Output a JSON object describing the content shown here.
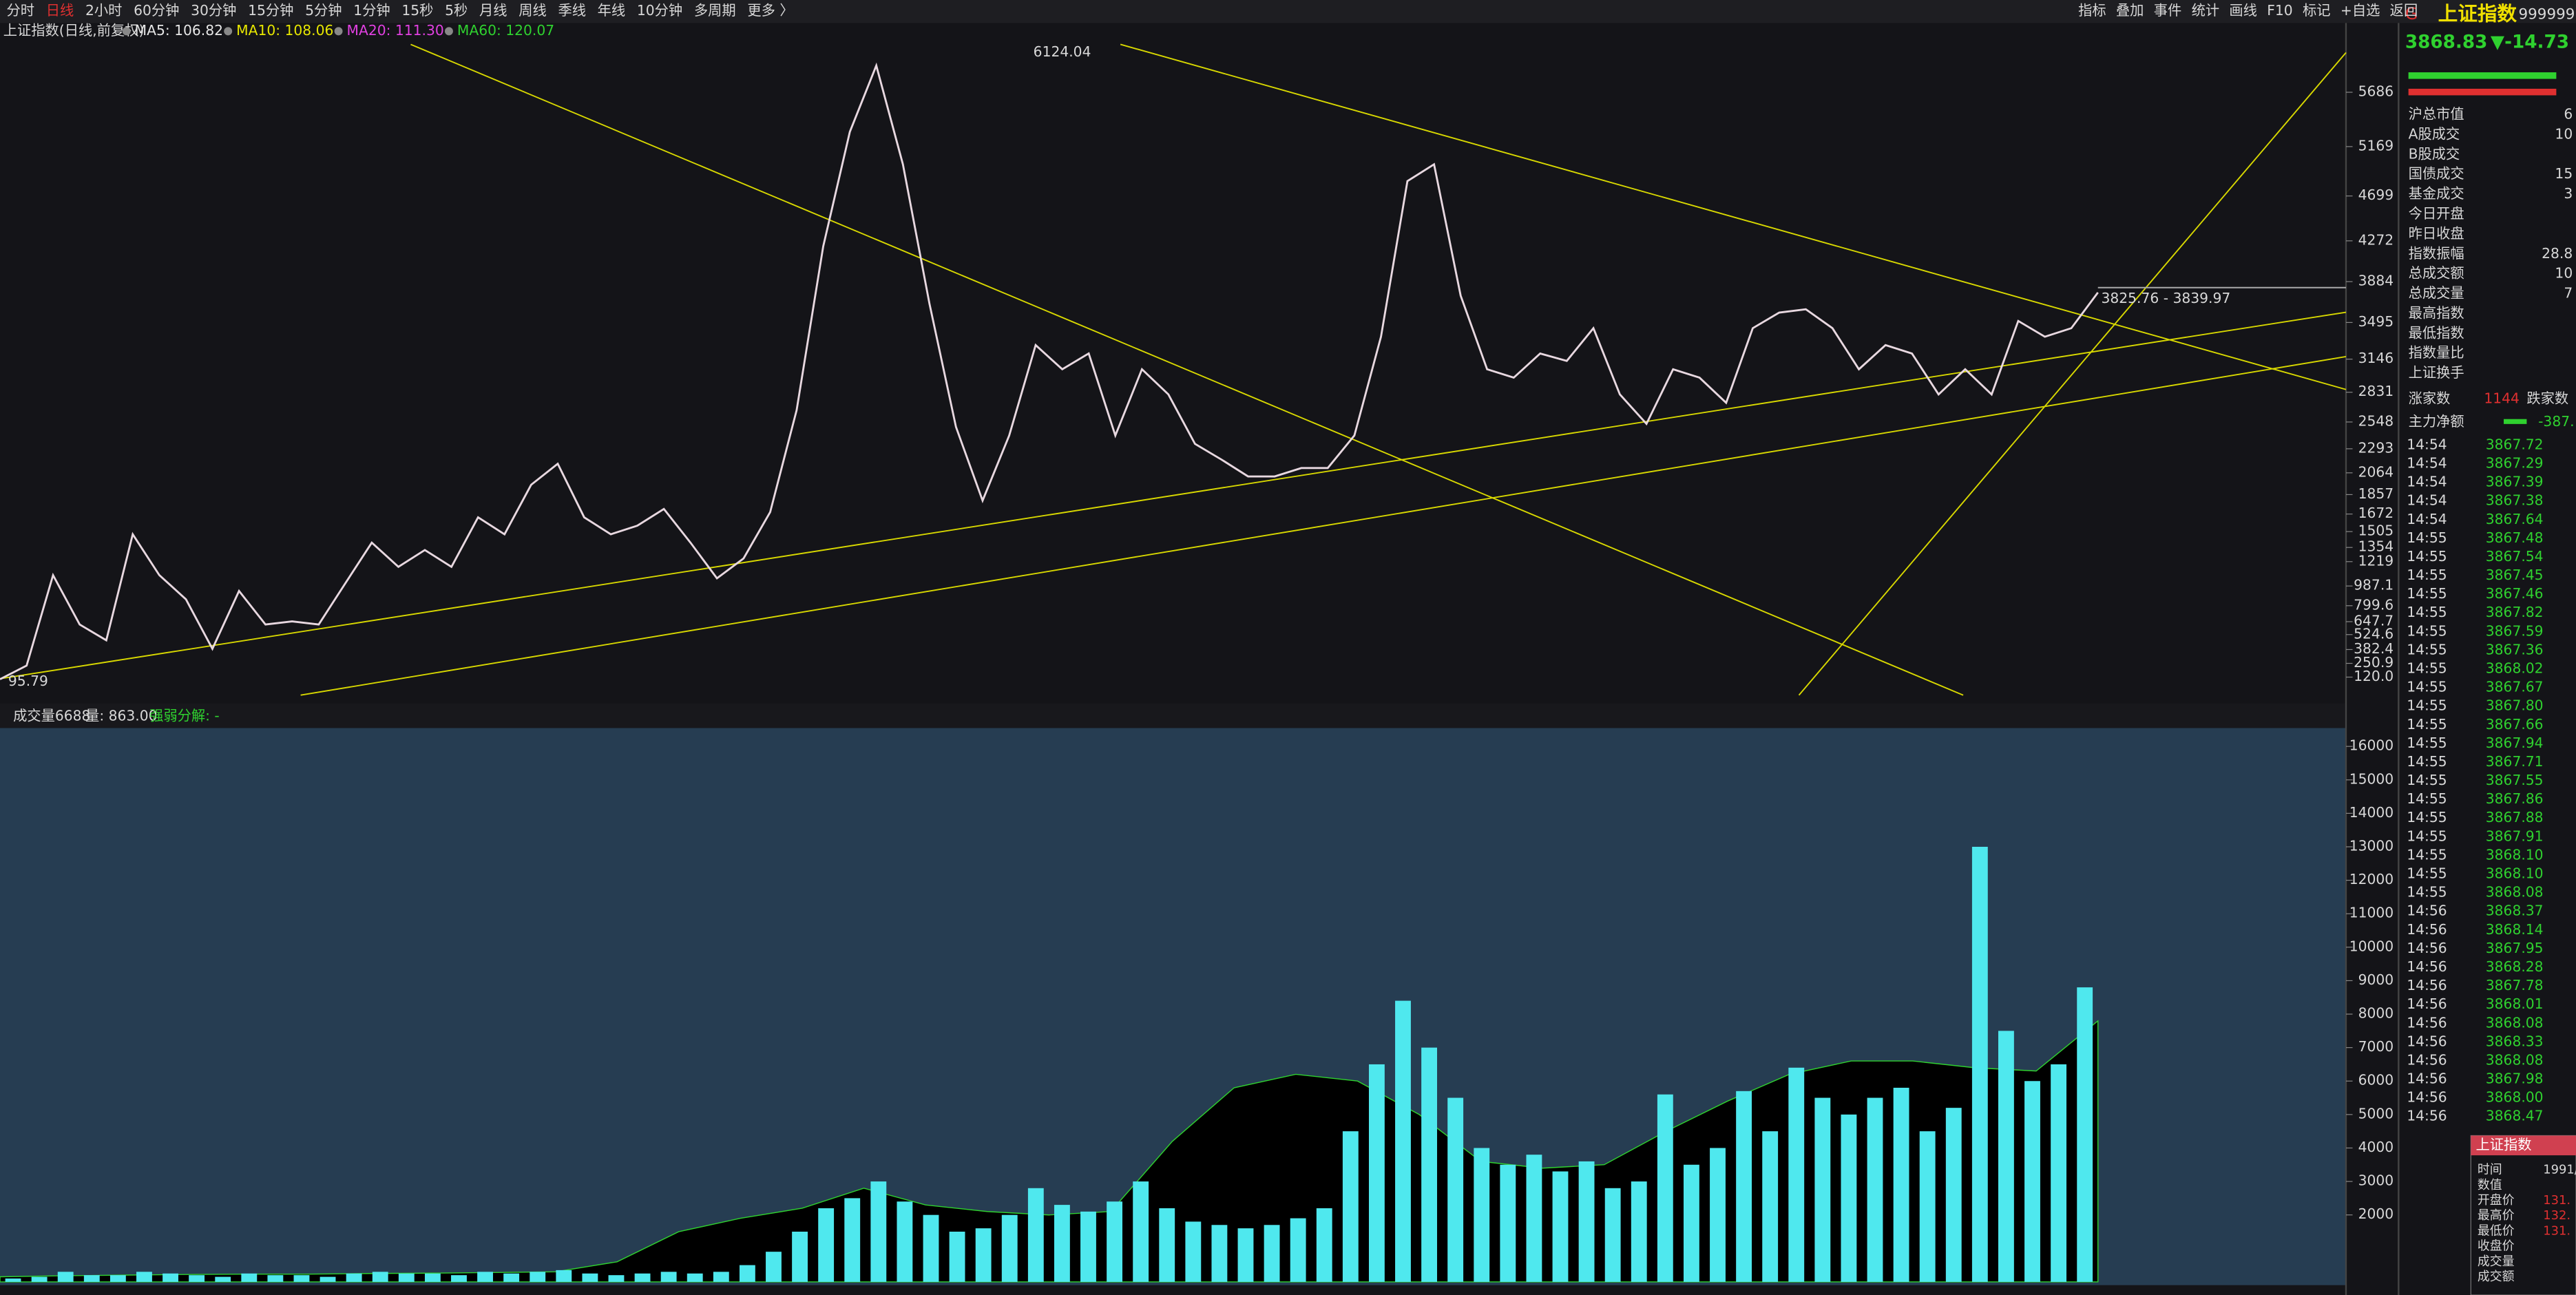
{
  "toolbar": {
    "periods": [
      "分时",
      "日线",
      "2小时",
      "60分钟",
      "30分钟",
      "15分钟",
      "5分钟",
      "1分钟",
      "15秒",
      "5秒",
      "月线",
      "周线",
      "季线",
      "年线",
      "10分钟",
      "多周期",
      "更多 〉"
    ],
    "tools": [
      "指标",
      "叠加",
      "事件",
      "统计",
      "画线",
      "F10",
      "标记",
      "+自选",
      "返回"
    ]
  },
  "chart_data": [
    {
      "type": "line",
      "title": "上证指数(日线,前复权)",
      "legend": [
        {
          "text": "MA5: 106.82",
          "color": "#e6e6e6"
        },
        {
          "text": "MA10: 108.06",
          "color": "#e6e600"
        },
        {
          "text": "MA20: 111.30",
          "color": "#e040e0"
        },
        {
          "text": "MA60: 120.07",
          "color": "#2fd12f"
        }
      ],
      "ylim": [
        -130,
        6220
      ],
      "yticks": [
        5686,
        5169,
        4699,
        4272,
        3884,
        3495,
        3146,
        2831,
        2548,
        2293,
        2064,
        1857,
        1672,
        1505,
        1354,
        1219,
        {
          "value": 987.1,
          "label": "987.1"
        },
        {
          "value": 799.6,
          "label": "799.6"
        },
        {
          "value": 647.7,
          "label": "647.7"
        },
        {
          "value": 524.6,
          "label": "524.6"
        },
        {
          "value": 382.4,
          "label": "382.4"
        },
        {
          "value": 250.9,
          "label": "250.9"
        },
        {
          "value": 120,
          "label": "120.0"
        }
      ],
      "color": "#e8d8e0",
      "values": [
        100,
        230,
        1090,
        620,
        470,
        1480,
        1090,
        860,
        390,
        940,
        620,
        650,
        620,
        1010,
        1400,
        1170,
        1330,
        1170,
        1640,
        1480,
        1950,
        2150,
        1640,
        1480,
        1560,
        1720,
        1400,
        1060,
        1250,
        1690,
        2660,
        4220,
        5310,
        5940,
        5000,
        3670,
        2500,
        1800,
        2420,
        3280,
        3050,
        3200,
        2420,
        3050,
        2810,
        2340,
        2190,
        2030,
        2030,
        2110,
        2110,
        2420,
        3360,
        4840,
        5000,
        3750,
        3050,
        2970,
        3200,
        3130,
        3440,
        2810,
        2530,
        3050,
        2970,
        2730,
        3440,
        3590,
        3620,
        3440,
        3050,
        3280,
        3200,
        2810,
        3050,
        2810,
        3510,
        3360,
        3440,
        3780
      ],
      "annotations": [
        "6124.04",
        "95.79",
        "3825.76 - 3839.97"
      ]
    },
    {
      "type": "bar",
      "title": "成交量6688",
      "subtitle": "量: 863.00",
      "note": "强弱分解: -",
      "ylim": [
        0,
        16500
      ],
      "yticks": [
        2000,
        3000,
        4000,
        5000,
        6000,
        7000,
        8000,
        9000,
        10000,
        11000,
        12000,
        13000,
        14000,
        15000,
        16000
      ],
      "series": [
        {
          "color": "#000000",
          "values": [
            150,
            180,
            200,
            220,
            230,
            230,
            250,
            260,
            280,
            300,
            600,
            1500,
            1900,
            2200,
            2800,
            2300,
            2100,
            2000,
            2100,
            4200,
            5800,
            6200,
            6000,
            5000,
            3600,
            3400,
            3500,
            4500,
            5400,
            6200,
            6600,
            6600,
            6400,
            6300,
            7800
          ]
        },
        {
          "color": "#4fe8ee",
          "values": [
            100,
            150,
            300,
            200,
            200,
            300,
            250,
            200,
            150,
            250,
            200,
            200,
            150,
            250,
            300,
            250,
            250,
            200,
            300,
            250,
            300,
            350,
            250,
            200,
            250,
            300,
            250,
            300,
            500,
            900,
            1500,
            2200,
            2500,
            3000,
            2400,
            2000,
            1500,
            1600,
            2000,
            2800,
            2300,
            2100,
            2400,
            3000,
            2200,
            1800,
            1700,
            1600,
            1700,
            1900,
            2200,
            4500,
            6500,
            8400,
            7000,
            5500,
            4000,
            3500,
            3800,
            3300,
            3600,
            2800,
            3000,
            5600,
            3500,
            4000,
            5700,
            4500,
            6400,
            5500,
            5000,
            5500,
            5800,
            4500,
            5200,
            13000,
            7500,
            6000,
            6500,
            8800
          ]
        }
      ]
    }
  ],
  "quote": {
    "flag": "G",
    "name": "上证指数",
    "code": "999999",
    "price": "3868.83",
    "change": "▼-14.73"
  },
  "stats": [
    {
      "label": "沪总市值",
      "value": "6"
    },
    {
      "label": "A股成交",
      "value": "10"
    },
    {
      "label": "B股成交"
    },
    {
      "label": "国债成交",
      "value": "15"
    },
    {
      "label": "基金成交",
      "value": "3"
    },
    {
      "label": "今日开盘"
    },
    {
      "label": "昨日收盘"
    },
    {
      "label": "指数振幅",
      "value": "28.8"
    },
    {
      "label": "总成交额",
      "value": "10"
    },
    {
      "label": "总成交量",
      "value": "7"
    },
    {
      "label": "最高指数"
    },
    {
      "label": "最低指数"
    },
    {
      "label": "指数量比"
    },
    {
      "label": "上证换手"
    }
  ],
  "breadth": {
    "up_label": "涨家数",
    "up": "1144",
    "down_label": "跌家数",
    "flow_label": "主力净额",
    "flow": "-387."
  },
  "ticks": [
    [
      "14:54",
      "3867.72"
    ],
    [
      "14:54",
      "3867.29"
    ],
    [
      "14:54",
      "3867.39"
    ],
    [
      "14:54",
      "3867.38"
    ],
    [
      "14:54",
      "3867.64"
    ],
    [
      "14:55",
      "3867.48"
    ],
    [
      "14:55",
      "3867.54"
    ],
    [
      "14:55",
      "3867.45"
    ],
    [
      "14:55",
      "3867.46"
    ],
    [
      "14:55",
      "3867.82"
    ],
    [
      "14:55",
      "3867.59"
    ],
    [
      "14:55",
      "3867.36"
    ],
    [
      "14:55",
      "3868.02"
    ],
    [
      "14:55",
      "3867.67"
    ],
    [
      "14:55",
      "3867.80"
    ],
    [
      "14:55",
      "3867.66"
    ],
    [
      "14:55",
      "3867.94"
    ],
    [
      "14:55",
      "3867.71"
    ],
    [
      "14:55",
      "3867.55"
    ],
    [
      "14:55",
      "3867.86"
    ],
    [
      "14:55",
      "3867.88"
    ],
    [
      "14:55",
      "3867.91"
    ],
    [
      "14:55",
      "3868.10"
    ],
    [
      "14:55",
      "3868.10"
    ],
    [
      "14:55",
      "3868.08"
    ],
    [
      "14:56",
      "3868.37"
    ],
    [
      "14:56",
      "3868.14"
    ],
    [
      "14:56",
      "3867.95"
    ],
    [
      "14:56",
      "3868.28"
    ],
    [
      "14:56",
      "3867.78"
    ],
    [
      "14:56",
      "3868.01"
    ],
    [
      "14:56",
      "3868.08"
    ],
    [
      "14:56",
      "3868.33"
    ],
    [
      "14:56",
      "3868.08"
    ],
    [
      "14:56",
      "3867.98"
    ],
    [
      "14:56",
      "3868.00"
    ],
    [
      "14:56",
      "3868.47"
    ]
  ],
  "popup": {
    "title": "上证指数",
    "rows": [
      [
        "时间",
        "1991/"
      ],
      [
        "数值"
      ],
      [
        "开盘价",
        "131."
      ],
      [
        "最高价",
        "132."
      ],
      [
        "最低价",
        "131."
      ],
      [
        "收盘价"
      ],
      [
        "成交量"
      ],
      [
        "成交额"
      ]
    ]
  }
}
